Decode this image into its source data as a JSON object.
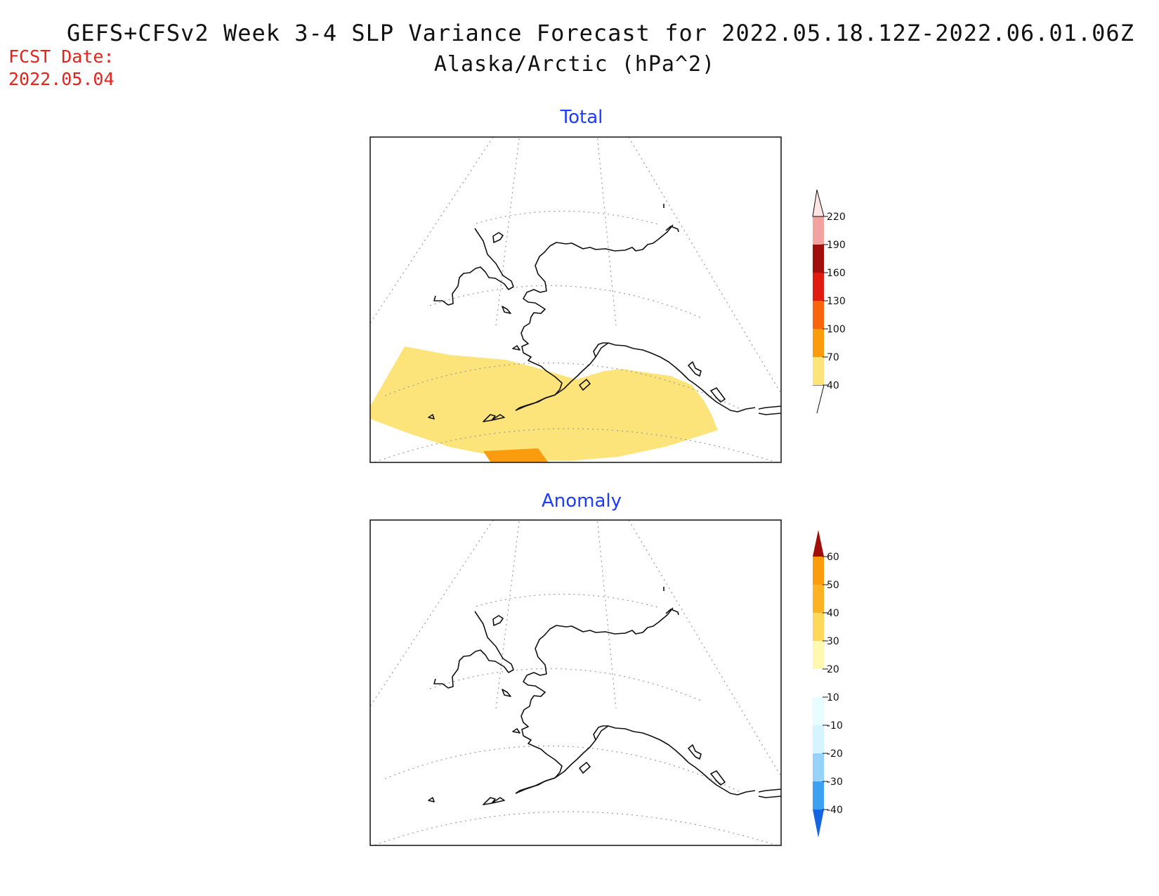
{
  "header": {
    "title_line1": "GEFS+CFSv2 Week 3-4 SLP Variance Forecast for 2022.05.18.12Z-2022.06.01.06Z",
    "title_line2": "Alaska/Arctic (hPa^2)",
    "fcst_label": "FCST Date:",
    "fcst_date": "2022.05.04"
  },
  "panels": [
    {
      "title": "Total",
      "colorbar": {
        "labels": [
          "40",
          "70",
          "100",
          "130",
          "160",
          "190",
          "220"
        ],
        "colors": [
          "#fde47a",
          "#fb9b0e",
          "#f9640f",
          "#e01b0f",
          "#a00f0a",
          "#f2a3a0",
          "#fde5e4"
        ]
      },
      "shaded_regions": [
        {
          "level": "40-70",
          "color": "#fde47a"
        },
        {
          "level": "70-100",
          "color": "#fb9b0e"
        }
      ]
    },
    {
      "title": "Anomaly",
      "colorbar": {
        "labels": [
          "-40",
          "-30",
          "-20",
          "-10",
          "10",
          "20",
          "30",
          "40",
          "50",
          "60"
        ],
        "colors": [
          "#1565e0",
          "#3da0f0",
          "#96d2fa",
          "#d4f5ff",
          "#e8fdff",
          "#ffffff",
          "#fff8b0",
          "#fdd85a",
          "#fbb224",
          "#fb9b0e",
          "#f9640f",
          "#e01b0f",
          "#a00f0a"
        ]
      },
      "shaded_regions": []
    }
  ]
}
